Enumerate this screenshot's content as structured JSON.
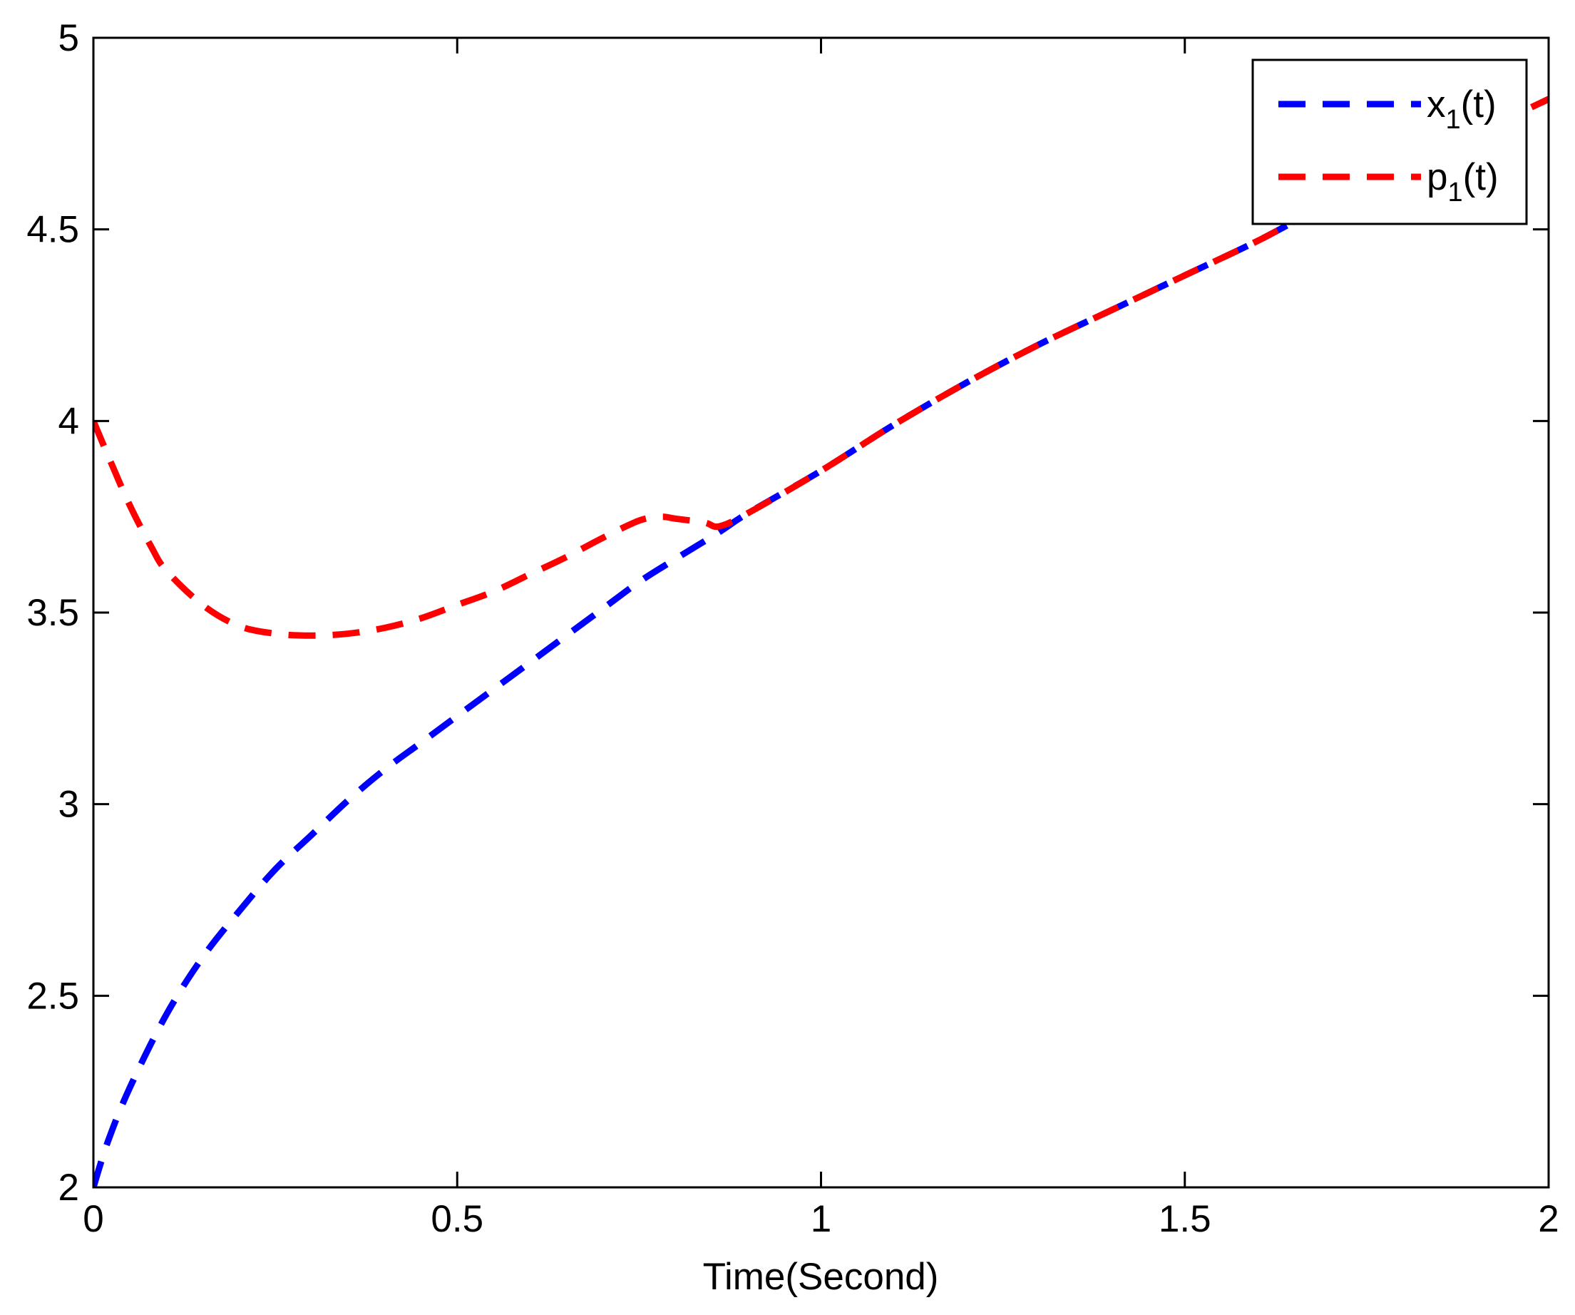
{
  "chart_data": {
    "type": "line",
    "title": "",
    "xlabel": "Time(Second)",
    "ylabel": "",
    "xlim": [
      0,
      2
    ],
    "ylim": [
      2,
      5
    ],
    "x_ticks": [
      "0",
      "0.5",
      "1",
      "1.5",
      "2"
    ],
    "y_ticks": [
      "2",
      "2.5",
      "3",
      "3.5",
      "4",
      "4.5",
      "5"
    ],
    "grid": false,
    "legend_position": "top-right",
    "series": [
      {
        "name": "x",
        "name_subscript": "1",
        "name_suffix": "(t)",
        "color": "#0000ff",
        "line_style": "dashed",
        "x": [
          0,
          0.02,
          0.05,
          0.1,
          0.15,
          0.2,
          0.25,
          0.3,
          0.35,
          0.4,
          0.45,
          0.5,
          0.55,
          0.6,
          0.65,
          0.7,
          0.75,
          0.8,
          0.86,
          0.9,
          1.0,
          1.1,
          1.2,
          1.3,
          1.4,
          1.5,
          1.6,
          1.7,
          1.8,
          1.9,
          2.0
        ],
        "y": [
          2.0,
          2.12,
          2.26,
          2.45,
          2.6,
          2.72,
          2.83,
          2.92,
          3.01,
          3.09,
          3.16,
          3.23,
          3.3,
          3.37,
          3.44,
          3.51,
          3.58,
          3.64,
          3.71,
          3.76,
          3.87,
          3.99,
          4.1,
          4.2,
          4.29,
          4.38,
          4.47,
          4.57,
          4.66,
          4.75,
          4.84
        ]
      },
      {
        "name": "p",
        "name_subscript": "1",
        "name_suffix": "(t)",
        "color": "#ff0000",
        "line_style": "dashed",
        "x": [
          0,
          0.02,
          0.05,
          0.08,
          0.1,
          0.15,
          0.2,
          0.25,
          0.3,
          0.35,
          0.4,
          0.45,
          0.5,
          0.55,
          0.6,
          0.65,
          0.7,
          0.75,
          0.78,
          0.8,
          0.84,
          0.86,
          0.9,
          1.0,
          1.1,
          1.2,
          1.3,
          1.4,
          1.5,
          1.6,
          1.7,
          1.8,
          1.9,
          2.0
        ],
        "y": [
          4.0,
          3.91,
          3.78,
          3.67,
          3.61,
          3.52,
          3.465,
          3.445,
          3.44,
          3.445,
          3.46,
          3.485,
          3.52,
          3.555,
          3.6,
          3.645,
          3.695,
          3.74,
          3.75,
          3.745,
          3.735,
          3.725,
          3.76,
          3.87,
          3.99,
          4.1,
          4.2,
          4.29,
          4.38,
          4.47,
          4.57,
          4.66,
          4.75,
          4.84
        ]
      }
    ]
  }
}
